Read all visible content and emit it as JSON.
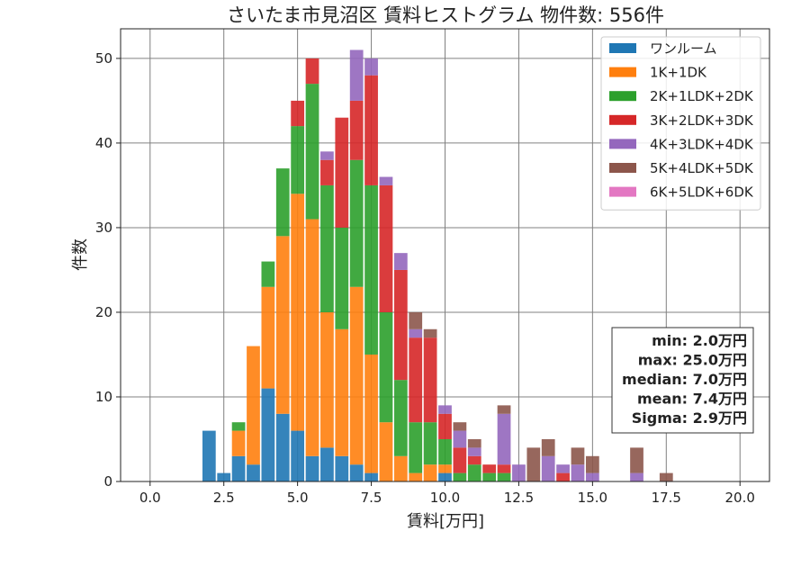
{
  "chart_data": {
    "type": "bar",
    "stacked": true,
    "title": "さいたま市見沼区 賃料ヒストグラム  物件数: 556件",
    "xlabel": "賃料[万円]",
    "ylabel": "件数",
    "xlim": [
      -1.0,
      21.0
    ],
    "ylim": [
      0,
      53.5
    ],
    "xticks": [
      "0.0",
      "2.5",
      "5.0",
      "7.5",
      "10.0",
      "12.5",
      "15.0",
      "17.5",
      "20.0"
    ],
    "yticks": [
      "0",
      "10",
      "20",
      "30",
      "40",
      "50"
    ],
    "grid": true,
    "legend_position": "top-right",
    "bin_width": 0.5,
    "x": [
      2.0,
      2.5,
      3.0,
      3.5,
      4.0,
      4.5,
      5.0,
      5.5,
      6.0,
      6.5,
      7.0,
      7.5,
      8.0,
      8.5,
      9.0,
      9.5,
      10.0,
      10.5,
      11.0,
      11.5,
      12.0,
      12.5,
      13.0,
      13.5,
      14.0,
      14.5,
      15.0,
      15.5,
      16.0,
      16.5,
      17.0,
      17.5
    ],
    "series": [
      {
        "name": "ワンルーム",
        "color": "#1f77b4",
        "values": [
          6,
          1,
          3,
          2,
          11,
          8,
          6,
          3,
          4,
          3,
          2,
          1,
          0,
          0,
          0,
          0,
          1,
          0,
          0,
          0,
          0,
          0,
          0,
          0,
          0,
          0,
          0,
          0,
          0,
          0,
          0,
          0
        ]
      },
      {
        "name": "1K+1DK",
        "color": "#ff7f0e",
        "values": [
          0,
          0,
          3,
          14,
          12,
          21,
          28,
          28,
          16,
          15,
          21,
          14,
          7,
          3,
          1,
          2,
          1,
          0,
          0,
          0,
          0,
          0,
          0,
          0,
          0,
          0,
          0,
          0,
          0,
          0,
          0,
          0
        ]
      },
      {
        "name": "2K+1LDK+2DK",
        "color": "#2ca02c",
        "values": [
          0,
          0,
          1,
          0,
          3,
          8,
          8,
          16,
          15,
          12,
          15,
          20,
          13,
          9,
          6,
          5,
          3,
          1,
          2,
          1,
          1,
          0,
          0,
          0,
          0,
          0,
          0,
          0,
          0,
          0,
          0,
          0
        ]
      },
      {
        "name": "3K+2LDK+3DK",
        "color": "#d62728",
        "values": [
          0,
          0,
          0,
          0,
          0,
          0,
          3,
          3,
          3,
          13,
          7,
          13,
          15,
          13,
          10,
          10,
          3,
          3,
          1,
          1,
          1,
          0,
          0,
          0,
          1,
          0,
          0,
          0,
          0,
          0,
          0,
          0
        ]
      },
      {
        "name": "4K+3LDK+4DK",
        "color": "#9467bd",
        "values": [
          0,
          0,
          0,
          0,
          0,
          0,
          0,
          0,
          1,
          0,
          6,
          2,
          1,
          2,
          1,
          0,
          1,
          2,
          1,
          0,
          6,
          2,
          0,
          3,
          1,
          2,
          1,
          0,
          0,
          1,
          0,
          0
        ]
      },
      {
        "name": "5K+4LDK+5DK",
        "color": "#8c564b",
        "values": [
          0,
          0,
          0,
          0,
          0,
          0,
          0,
          0,
          0,
          0,
          0,
          0,
          0,
          0,
          2,
          1,
          0,
          1,
          1,
          0,
          1,
          0,
          4,
          2,
          0,
          2,
          2,
          0,
          0,
          3,
          0,
          1
        ]
      },
      {
        "name": "6K+5LDK+6DK",
        "color": "#e377c2",
        "values": [
          0,
          0,
          0,
          0,
          0,
          0,
          0,
          0,
          0,
          0,
          0,
          0,
          0,
          0,
          0,
          0,
          0,
          0,
          0,
          0,
          0,
          0,
          0,
          0,
          0,
          0,
          0,
          0,
          0,
          0,
          0,
          0
        ]
      }
    ],
    "stats": [
      "min: 2.0万円",
      "max: 25.0万円",
      "median: 7.0万円",
      "mean: 7.4万円",
      "Sigma: 2.9万円"
    ]
  }
}
